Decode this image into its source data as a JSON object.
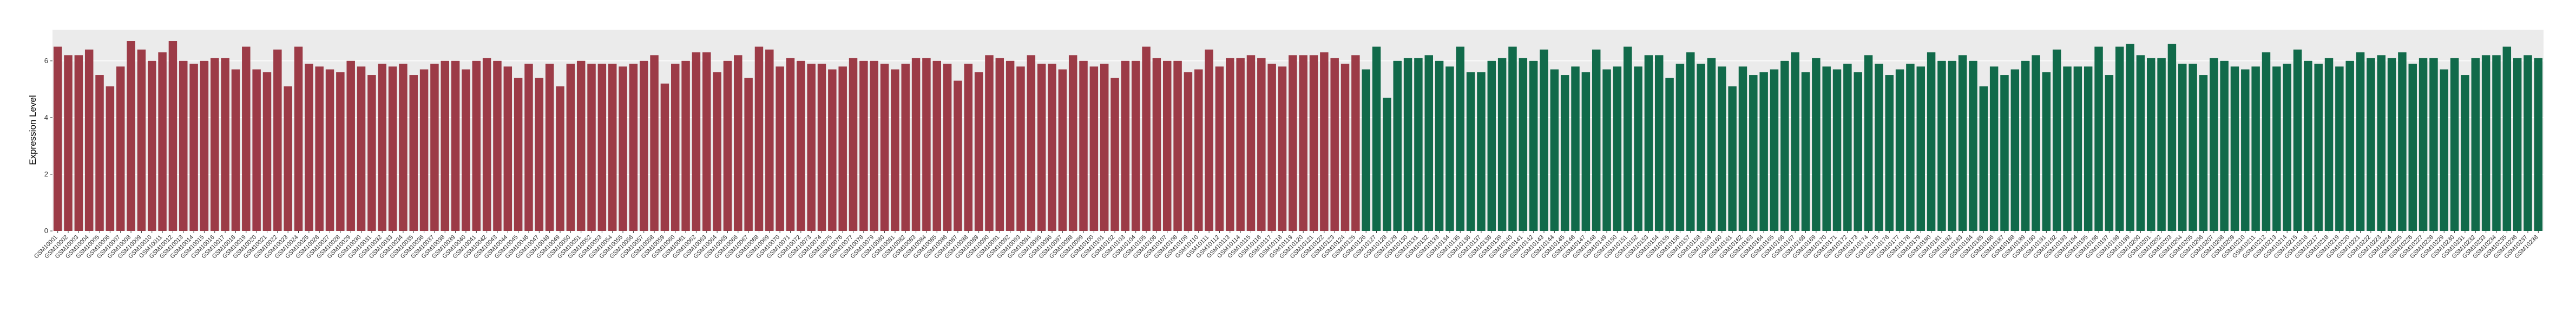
{
  "chart_data": {
    "type": "bar",
    "y_label": "Expression Level",
    "ylim": [
      0,
      7.1
    ],
    "yticks": [
      0,
      2,
      4,
      6
    ],
    "grid": true,
    "categories": [
      "GSM10001",
      "GSM10002",
      "GSM10003",
      "GSM10004",
      "GSM10005",
      "GSM10006",
      "GSM10007",
      "GSM10008",
      "GSM10009",
      "GSM10010",
      "GSM10011",
      "GSM10012",
      "GSM10013",
      "GSM10014",
      "GSM10015",
      "GSM10016",
      "GSM10017",
      "GSM10018",
      "GSM10019",
      "GSM10020",
      "GSM10021",
      "GSM10022",
      "GSM10023",
      "GSM10024",
      "GSM10025",
      "GSM10026",
      "GSM10027",
      "GSM10028",
      "GSM10029",
      "GSM10030",
      "GSM10031",
      "GSM10032",
      "GSM10033",
      "GSM10034",
      "GSM10035",
      "GSM10036",
      "GSM10037",
      "GSM10038",
      "GSM10039",
      "GSM10040",
      "GSM10041",
      "GSM10042",
      "GSM10043",
      "GSM10044",
      "GSM10045",
      "GSM10046",
      "GSM10047",
      "GSM10048",
      "GSM10049",
      "GSM10050",
      "GSM10051",
      "GSM10052",
      "GSM10053",
      "GSM10054",
      "GSM10055",
      "GSM10056",
      "GSM10057",
      "GSM10058",
      "GSM10059",
      "GSM10060",
      "GSM10061",
      "GSM10062",
      "GSM10063",
      "GSM10064",
      "GSM10065",
      "GSM10066",
      "GSM10067",
      "GSM10068",
      "GSM10069",
      "GSM10070",
      "GSM10071",
      "GSM10072",
      "GSM10073",
      "GSM10074",
      "GSM10075",
      "GSM10076",
      "GSM10077",
      "GSM10078",
      "GSM10079",
      "GSM10080",
      "GSM10081",
      "GSM10082",
      "GSM10083",
      "GSM10084",
      "GSM10085",
      "GSM10086",
      "GSM10087",
      "GSM10088",
      "GSM10089",
      "GSM10090",
      "GSM10091",
      "GSM10092",
      "GSM10093",
      "GSM10094",
      "GSM10095",
      "GSM10096",
      "GSM10097",
      "GSM10098",
      "GSM10099",
      "GSM10100",
      "GSM10101",
      "GSM10102",
      "GSM10103",
      "GSM10104",
      "GSM10105",
      "GSM10106",
      "GSM10107",
      "GSM10108",
      "GSM10109",
      "GSM10110",
      "GSM10111",
      "GSM10112",
      "GSM10113",
      "GSM10114",
      "GSM10115",
      "GSM10116",
      "GSM10117",
      "GSM10118",
      "GSM10119",
      "GSM10120",
      "GSM10121",
      "GSM10122",
      "GSM10123",
      "GSM10124",
      "GSM10125",
      "GSM10126",
      "GSM10127",
      "GSM10128",
      "GSM10129",
      "GSM10130",
      "GSM10131",
      "GSM10132",
      "GSM10133",
      "GSM10134",
      "GSM10135",
      "GSM10136",
      "GSM10137",
      "GSM10138",
      "GSM10139",
      "GSM10140",
      "GSM10141",
      "GSM10142",
      "GSM10143",
      "GSM10144",
      "GSM10145",
      "GSM10146",
      "GSM10147",
      "GSM10148",
      "GSM10149",
      "GSM10150",
      "GSM10151",
      "GSM10152",
      "GSM10153",
      "GSM10154",
      "GSM10155",
      "GSM10156",
      "GSM10157",
      "GSM10158",
      "GSM10159",
      "GSM10160",
      "GSM10161",
      "GSM10162",
      "GSM10163",
      "GSM10164",
      "GSM10165",
      "GSM10166",
      "GSM10167",
      "GSM10168",
      "GSM10169",
      "GSM10170",
      "GSM10171",
      "GSM10172",
      "GSM10173",
      "GSM10174",
      "GSM10175",
      "GSM10176",
      "GSM10177",
      "GSM10178",
      "GSM10179",
      "GSM10180",
      "GSM10181",
      "GSM10182",
      "GSM10183",
      "GSM10184",
      "GSM10185",
      "GSM10186",
      "GSM10187",
      "GSM10188",
      "GSM10189",
      "GSM10190",
      "GSM10191",
      "GSM10192",
      "GSM10193",
      "GSM10194",
      "GSM10195",
      "GSM10196",
      "GSM10197",
      "GSM10198",
      "GSM10199",
      "GSM10200",
      "GSM10201",
      "GSM10202",
      "GSM10203",
      "GSM10204",
      "GSM10205",
      "GSM10206",
      "GSM10207",
      "GSM10208",
      "GSM10209",
      "GSM10210",
      "GSM10211",
      "GSM10212",
      "GSM10213",
      "GSM10214",
      "GSM10215",
      "GSM10216",
      "GSM10217",
      "GSM10218",
      "GSM10219",
      "GSM10220",
      "GSM10221",
      "GSM10222",
      "GSM10223",
      "GSM10224",
      "GSM10225",
      "GSM10226",
      "GSM10227",
      "GSM10228",
      "GSM10229",
      "GSM10230",
      "GSM10231",
      "GSM10232",
      "GSM10233",
      "GSM10234",
      "GSM10235",
      "GSM10236",
      "GSM10237",
      "GSM10238"
    ],
    "series": [
      {
        "color": "#9c3b47",
        "values": [
          6.5,
          6.2,
          6.2,
          6.4,
          5.5,
          5.1,
          5.8,
          6.7,
          6.4,
          6.0,
          6.3,
          6.7,
          6.0,
          5.9,
          6.0,
          6.1,
          6.1,
          5.7,
          6.5,
          5.7,
          5.6,
          6.4,
          5.1,
          6.5,
          5.9,
          5.8,
          5.7,
          5.6,
          6.0,
          5.8,
          5.5,
          5.9,
          5.8,
          5.9,
          5.5,
          5.7,
          5.9,
          6.0,
          6.0,
          5.7,
          6.0,
          6.1,
          6.0,
          5.8,
          5.4,
          5.9,
          5.4,
          5.9,
          5.1,
          5.9,
          6.0,
          5.9,
          5.9,
          5.9,
          5.8,
          5.9,
          6.0,
          6.2,
          5.2,
          5.9,
          6.0,
          6.3,
          6.3,
          5.6,
          6.0,
          6.2,
          5.4,
          6.5,
          6.4,
          5.8,
          6.1,
          6.0,
          5.9,
          5.9,
          5.7,
          5.8,
          6.1,
          6.0,
          6.0,
          5.9,
          5.7,
          5.9,
          6.1,
          6.1,
          6.0,
          5.9,
          5.3,
          5.9,
          5.6,
          6.2,
          6.1,
          6.0,
          5.8,
          6.2,
          5.9,
          5.9,
          5.7,
          6.2,
          6.0,
          5.8,
          5.9,
          5.4,
          6.0,
          6.0,
          6.5,
          6.1,
          6.0,
          6.0,
          5.6,
          5.7,
          6.4,
          5.8,
          6.1,
          6.1,
          6.2,
          6.1,
          5.9,
          5.8,
          6.2,
          6.2,
          6.2,
          6.3,
          6.1,
          5.9,
          6.2,
          null,
          null,
          null,
          null,
          null,
          null,
          null,
          null,
          null,
          null,
          null,
          null,
          null,
          null,
          null,
          null,
          null,
          null,
          null,
          null,
          null,
          null,
          null,
          null,
          null,
          null,
          null,
          null,
          null,
          null,
          null,
          null,
          null,
          null,
          null,
          null,
          null,
          null,
          null,
          null,
          null,
          null,
          null,
          null,
          null,
          null,
          null,
          null,
          null,
          null,
          null,
          null,
          null,
          null,
          null,
          null,
          null,
          null,
          null,
          null,
          null,
          null,
          null,
          null,
          null,
          null,
          null,
          null,
          null,
          null,
          null,
          null,
          null,
          null,
          null,
          null,
          null,
          null,
          null,
          null,
          null,
          null,
          null,
          null,
          null,
          null,
          null,
          null,
          null,
          null,
          null,
          null,
          null,
          null,
          null,
          null,
          null,
          null,
          null,
          null,
          null,
          null,
          null,
          null,
          null,
          null,
          null,
          null,
          null,
          null,
          null,
          null,
          null
        ]
      },
      {
        "color": "#116a4a",
        "values": [
          null,
          null,
          null,
          null,
          null,
          null,
          null,
          null,
          null,
          null,
          null,
          null,
          null,
          null,
          null,
          null,
          null,
          null,
          null,
          null,
          null,
          null,
          null,
          null,
          null,
          null,
          null,
          null,
          null,
          null,
          null,
          null,
          null,
          null,
          null,
          null,
          null,
          null,
          null,
          null,
          null,
          null,
          null,
          null,
          null,
          null,
          null,
          null,
          null,
          null,
          null,
          null,
          null,
          null,
          null,
          null,
          null,
          null,
          null,
          null,
          null,
          null,
          null,
          null,
          null,
          null,
          null,
          null,
          null,
          null,
          null,
          null,
          null,
          null,
          null,
          null,
          null,
          null,
          null,
          null,
          null,
          null,
          null,
          null,
          null,
          null,
          null,
          null,
          null,
          null,
          null,
          null,
          null,
          null,
          null,
          null,
          null,
          null,
          null,
          null,
          null,
          null,
          null,
          null,
          null,
          null,
          null,
          null,
          null,
          null,
          null,
          null,
          null,
          null,
          null,
          null,
          null,
          null,
          null,
          null,
          null,
          null,
          null,
          null,
          null,
          5.7,
          6.5,
          4.7,
          6.0,
          6.1,
          6.1,
          6.2,
          6.0,
          5.8,
          6.5,
          5.6,
          5.6,
          6.0,
          6.1,
          6.5,
          6.1,
          6.0,
          6.4,
          5.7,
          5.5,
          5.8,
          5.6,
          6.4,
          5.7,
          5.8,
          6.5,
          5.8,
          6.2,
          6.2,
          5.4,
          5.9,
          6.3,
          5.9,
          6.1,
          5.8,
          5.1,
          5.8,
          5.5,
          5.6,
          5.7,
          6.0,
          6.3,
          5.6,
          6.1,
          5.8,
          5.7,
          5.9,
          5.6,
          6.2,
          5.9,
          5.5,
          5.7,
          5.9,
          5.8,
          6.3,
          6.0,
          6.0,
          6.2,
          6.0,
          5.1,
          5.8,
          5.5,
          5.7,
          6.0,
          6.2,
          5.6,
          6.4,
          5.8,
          5.8,
          5.8,
          6.5,
          5.5,
          6.5,
          6.6,
          6.2,
          6.1,
          6.1,
          6.6,
          5.9,
          5.9,
          5.5,
          6.1,
          6.0,
          5.8,
          5.7,
          5.8,
          6.3,
          5.8,
          5.9,
          6.4,
          6.0,
          5.9,
          6.1,
          5.8,
          6.0,
          6.3,
          6.1,
          6.2,
          6.1,
          6.3,
          5.9,
          6.1,
          6.1,
          5.7,
          6.1,
          5.5,
          6.1,
          6.2,
          6.2,
          6.5,
          6.1,
          6.2,
          6.1
        ]
      }
    ]
  }
}
